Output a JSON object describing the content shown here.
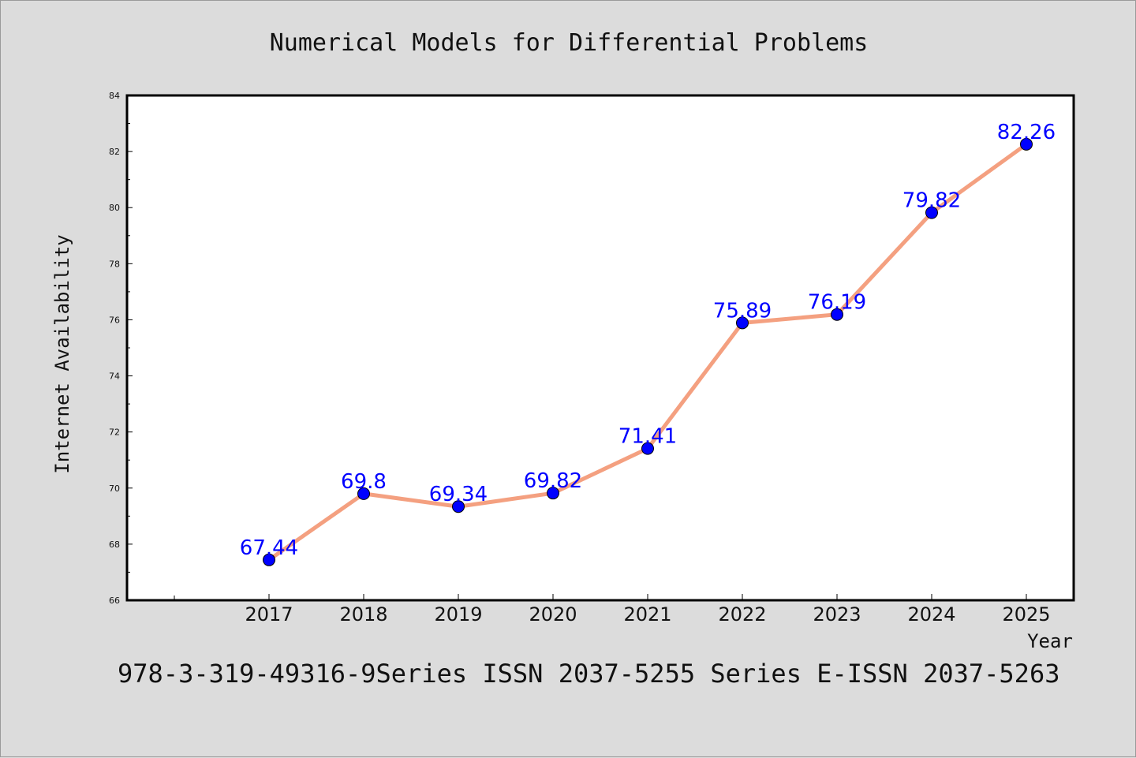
{
  "chart_data": {
    "type": "line",
    "title": "Numerical Models for Differential Problems",
    "xlabel": "Year",
    "ylabel": "Internet Availability",
    "categories": [
      "2017",
      "2018",
      "2019",
      "2020",
      "2021",
      "2022",
      "2023",
      "2024",
      "2025"
    ],
    "series": [
      {
        "values": [
          67.44,
          69.8,
          69.34,
          69.82,
          71.41,
          75.89,
          76.19,
          79.82,
          82.26
        ],
        "data_labels": [
          "67.44",
          "69.8",
          "69.34",
          "69.82",
          "71.41",
          "75.89",
          "76.19",
          "79.82",
          "82.26"
        ],
        "line_color": "#f4a080",
        "marker_color": "#0000ff"
      }
    ],
    "ylim": [
      66,
      84
    ],
    "yticks": [
      "66",
      "68",
      "70",
      "72",
      "74",
      "76",
      "78",
      "80",
      "82",
      "84"
    ],
    "grid": false,
    "legend": "none"
  },
  "footer_text": "978-3-319-49316-9Series ISSN 2037-5255 Series E-ISSN 2037-5263"
}
